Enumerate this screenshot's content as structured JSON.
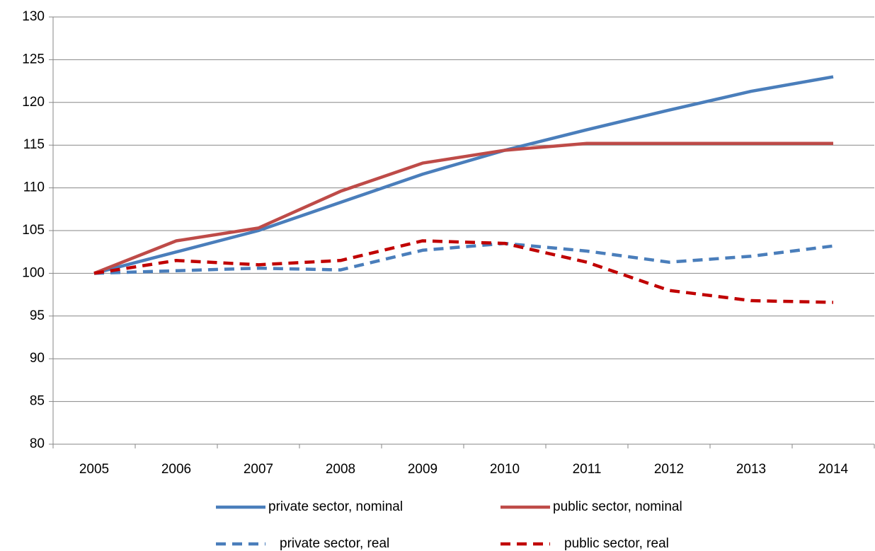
{
  "chart_data": {
    "type": "line",
    "categories": [
      "2005",
      "2006",
      "2007",
      "2008",
      "2009",
      "2010",
      "2011",
      "2012",
      "2013",
      "2014"
    ],
    "series": [
      {
        "name": "private sector, nominal",
        "color": "#4a7ebb",
        "dashed": false,
        "values": [
          100,
          102.5,
          105,
          108.3,
          111.6,
          114.4,
          116.8,
          119.1,
          121.3,
          123.0
        ]
      },
      {
        "name": "public sector, nominal",
        "color": "#be4b48",
        "dashed": false,
        "values": [
          100,
          103.8,
          105.3,
          109.6,
          112.9,
          114.4,
          115.2,
          115.2,
          115.2,
          115.2
        ]
      },
      {
        "name": "private sector, real",
        "color": "#4a7ebb",
        "dashed": true,
        "values": [
          100,
          100.3,
          100.6,
          100.4,
          102.7,
          103.5,
          102.6,
          101.3,
          102.0,
          103.2
        ]
      },
      {
        "name": "public sector, real",
        "color": "#c00000",
        "dashed": true,
        "values": [
          100,
          101.5,
          101.0,
          101.5,
          103.8,
          103.5,
          101.3,
          98.0,
          96.8,
          96.6
        ]
      }
    ],
    "ylim": [
      80,
      130
    ],
    "yticks": [
      80,
      85,
      90,
      95,
      100,
      105,
      110,
      115,
      120,
      125,
      130
    ],
    "grid": true,
    "legend": "bottom"
  }
}
